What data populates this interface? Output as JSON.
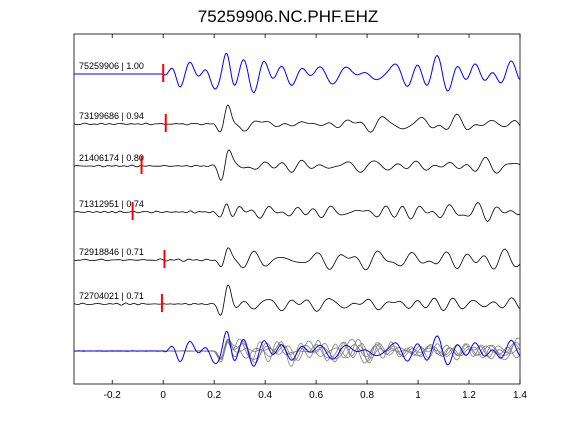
{
  "chart_data": {
    "type": "line",
    "title": "75259906.NC.PHF.EHZ",
    "xlabel": "",
    "ylabel": "",
    "xlim": [
      -0.35,
      1.4
    ],
    "xticks": [
      -0.2,
      0,
      0.2,
      0.4,
      0.6,
      0.8,
      1,
      1.2,
      1.4
    ],
    "xtick_labels": [
      "-0.2",
      "0",
      "0.2",
      "0.4",
      "0.6",
      "0.8",
      "1",
      "1.2",
      "1.4"
    ],
    "grid": false,
    "legend": "none",
    "colors": {
      "master": "#0000ff",
      "trace": "#000000",
      "overlay": "#808080",
      "pick": "#ff0000",
      "frame": "#000000"
    },
    "traces": [
      {
        "label": "75259906 | 1.00",
        "pick_time": 0.0,
        "onset": 0.0,
        "color": "#0000ff"
      },
      {
        "label": "73199686 | 0.94",
        "pick_time": 0.01,
        "onset": 0.2,
        "color": "#000000"
      },
      {
        "label": "21406174 | 0.80",
        "pick_time": -0.085,
        "onset": 0.18,
        "color": "#000000"
      },
      {
        "label": "71312951 | 0.74",
        "pick_time": -0.12,
        "onset": 0.2,
        "color": "#000000"
      },
      {
        "label": "72918846 | 0.71",
        "pick_time": 0.005,
        "onset": 0.2,
        "color": "#000000"
      },
      {
        "label": "72704021 | 0.71",
        "pick_time": -0.005,
        "onset": 0.2,
        "color": "#000000"
      }
    ],
    "stack": {
      "master_onset": 0.0,
      "overlay_count": 5
    }
  }
}
